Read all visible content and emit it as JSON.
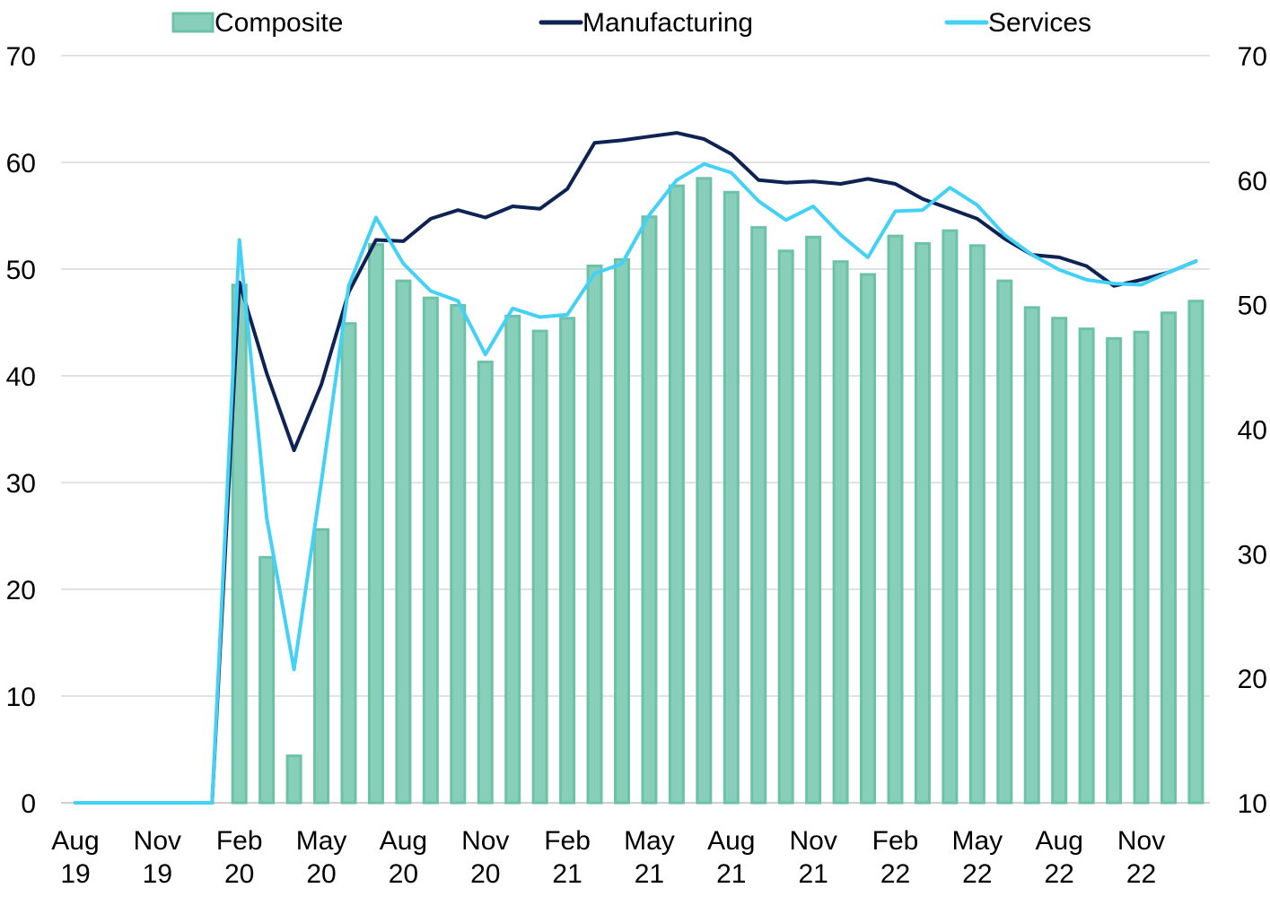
{
  "chart_data": {
    "type": "bar",
    "categories": [
      [
        "Aug",
        "19"
      ],
      [
        "Sep",
        "19"
      ],
      [
        "Oct",
        "19"
      ],
      [
        "Nov",
        "19"
      ],
      [
        "Dec",
        "19"
      ],
      [
        "Jan",
        "20"
      ],
      [
        "Feb",
        "20"
      ],
      [
        "Mar",
        "20"
      ],
      [
        "Apr",
        "20"
      ],
      [
        "May",
        "20"
      ],
      [
        "Jun",
        "20"
      ],
      [
        "Jul",
        "20"
      ],
      [
        "Aug",
        "20"
      ],
      [
        "Sep",
        "20"
      ],
      [
        "Oct",
        "20"
      ],
      [
        "Nov",
        "20"
      ],
      [
        "Dec",
        "20"
      ],
      [
        "Jan",
        "21"
      ],
      [
        "Feb",
        "21"
      ],
      [
        "Mar",
        "21"
      ],
      [
        "Apr",
        "21"
      ],
      [
        "May",
        "21"
      ],
      [
        "Jun",
        "21"
      ],
      [
        "Jul",
        "21"
      ],
      [
        "Aug",
        "21"
      ],
      [
        "Sep",
        "21"
      ],
      [
        "Oct",
        "21"
      ],
      [
        "Nov",
        "21"
      ],
      [
        "Dec",
        "21"
      ],
      [
        "Jan",
        "22"
      ],
      [
        "Feb",
        "22"
      ],
      [
        "Mar",
        "22"
      ],
      [
        "Apr",
        "22"
      ],
      [
        "May",
        "22"
      ],
      [
        "Jun",
        "22"
      ],
      [
        "Jul",
        "22"
      ],
      [
        "Aug",
        "22"
      ],
      [
        "Sep",
        "22"
      ],
      [
        "Oct",
        "22"
      ],
      [
        "Nov",
        "22"
      ],
      [
        "Dec",
        "22"
      ],
      [
        "Jan",
        "23"
      ]
    ],
    "x_tick_labels": [
      {
        "index": 0,
        "line1": "Aug",
        "line2": "19"
      },
      {
        "index": 3,
        "line1": "Nov",
        "line2": "19"
      },
      {
        "index": 6,
        "line1": "Feb",
        "line2": "20"
      },
      {
        "index": 9,
        "line1": "May",
        "line2": "20"
      },
      {
        "index": 12,
        "line1": "Aug",
        "line2": "20"
      },
      {
        "index": 15,
        "line1": "Nov",
        "line2": "20"
      },
      {
        "index": 18,
        "line1": "Feb",
        "line2": "21"
      },
      {
        "index": 21,
        "line1": "May",
        "line2": "21"
      },
      {
        "index": 24,
        "line1": "Aug",
        "line2": "21"
      },
      {
        "index": 27,
        "line1": "Nov",
        "line2": "21"
      },
      {
        "index": 30,
        "line1": "Feb",
        "line2": "22"
      },
      {
        "index": 33,
        "line1": "May",
        "line2": "22"
      },
      {
        "index": 36,
        "line1": "Aug",
        "line2": "22"
      },
      {
        "index": 39,
        "line1": "Nov",
        "line2": "22"
      }
    ],
    "series": [
      {
        "name": "Composite",
        "kind": "bar",
        "axis": "left",
        "color": "#88cfba",
        "edge_color": "#6cc2a6",
        "values": [
          null,
          null,
          null,
          null,
          null,
          null,
          48.5,
          23.0,
          4.4,
          25.6,
          44.9,
          52.3,
          48.9,
          47.3,
          46.6,
          41.3,
          45.6,
          44.2,
          45.4,
          50.3,
          50.9,
          54.9,
          57.8,
          58.5,
          57.2,
          53.9,
          51.7,
          53.0,
          50.7,
          49.5,
          53.1,
          52.4,
          53.6,
          52.2,
          48.9,
          46.4,
          45.4,
          44.4,
          43.5,
          44.1,
          45.9,
          47.0
        ]
      },
      {
        "name": "Manufacturing",
        "kind": "line",
        "axis": "right",
        "color": "#0e2354",
        "values": [
          10,
          10,
          10,
          10,
          10,
          10,
          51.8,
          44.5,
          38.3,
          43.6,
          51.0,
          55.2,
          55.1,
          56.9,
          57.6,
          57.0,
          57.9,
          57.7,
          59.3,
          63.0,
          63.2,
          63.5,
          63.8,
          63.3,
          62.1,
          60.0,
          59.8,
          59.9,
          59.7,
          60.1,
          59.7,
          58.5,
          57.7,
          56.9,
          55.3,
          54.0,
          53.8,
          53.1,
          51.5,
          52.0,
          52.6,
          53.5
        ]
      },
      {
        "name": "Services",
        "kind": "line",
        "axis": "right",
        "color": "#44d1f7",
        "values": [
          10,
          10,
          10,
          10,
          10,
          10,
          55.2,
          32.9,
          20.7,
          35.8,
          51.5,
          57.0,
          53.3,
          51.1,
          50.3,
          46.0,
          49.7,
          49.0,
          49.2,
          52.5,
          53.3,
          57.2,
          60.0,
          61.3,
          60.6,
          58.3,
          56.8,
          57.9,
          55.6,
          53.8,
          57.5,
          57.6,
          59.4,
          58.0,
          55.6,
          54.0,
          52.8,
          52.0,
          51.7,
          51.6,
          52.6,
          53.5
        ]
      }
    ],
    "y_left": {
      "min": 0,
      "max": 70,
      "ticks": [
        0,
        10,
        20,
        30,
        40,
        50,
        60,
        70
      ]
    },
    "y_right": {
      "min": 10,
      "max": 70,
      "ticks": [
        10,
        20,
        30,
        40,
        50,
        60,
        70
      ]
    },
    "grid": true,
    "legend_position": "top-center",
    "title": "",
    "xlabel": "",
    "ylabel": "",
    "y2label": ""
  }
}
